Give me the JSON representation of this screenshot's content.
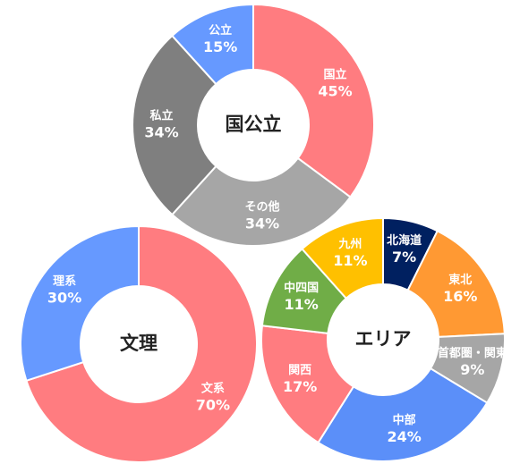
{
  "chart_data": [
    {
      "type": "donut",
      "title": "国公立",
      "categories": [
        "国立",
        "その他",
        "私立",
        "公立"
      ],
      "values": [
        45,
        34,
        34,
        15
      ],
      "value_labels": [
        "45%",
        "34%",
        "34%",
        "15%"
      ],
      "colors": [
        "#ff7c80",
        "#a6a6a6",
        "#7f7f7f",
        "#6699ff"
      ]
    },
    {
      "type": "donut",
      "title": "文理",
      "categories": [
        "文系",
        "理系"
      ],
      "values": [
        70,
        30
      ],
      "value_labels": [
        "70%",
        "30%"
      ],
      "colors": [
        "#ff7c80",
        "#6699ff"
      ]
    },
    {
      "type": "donut",
      "title": "エリア",
      "categories": [
        "北海道",
        "東北",
        "首都圏・関東",
        "中部",
        "関西",
        "中四国",
        "九州"
      ],
      "values": [
        7,
        16,
        9,
        24,
        17,
        11,
        11
      ],
      "value_labels": [
        "7%",
        "16%",
        "9%",
        "24%",
        "17%",
        "11%",
        "11%"
      ],
      "colors": [
        "#002060",
        "#ff9933",
        "#a6a6a6",
        "#5b8ff9",
        "#ff7c80",
        "#70ad47",
        "#ffc000"
      ]
    }
  ]
}
